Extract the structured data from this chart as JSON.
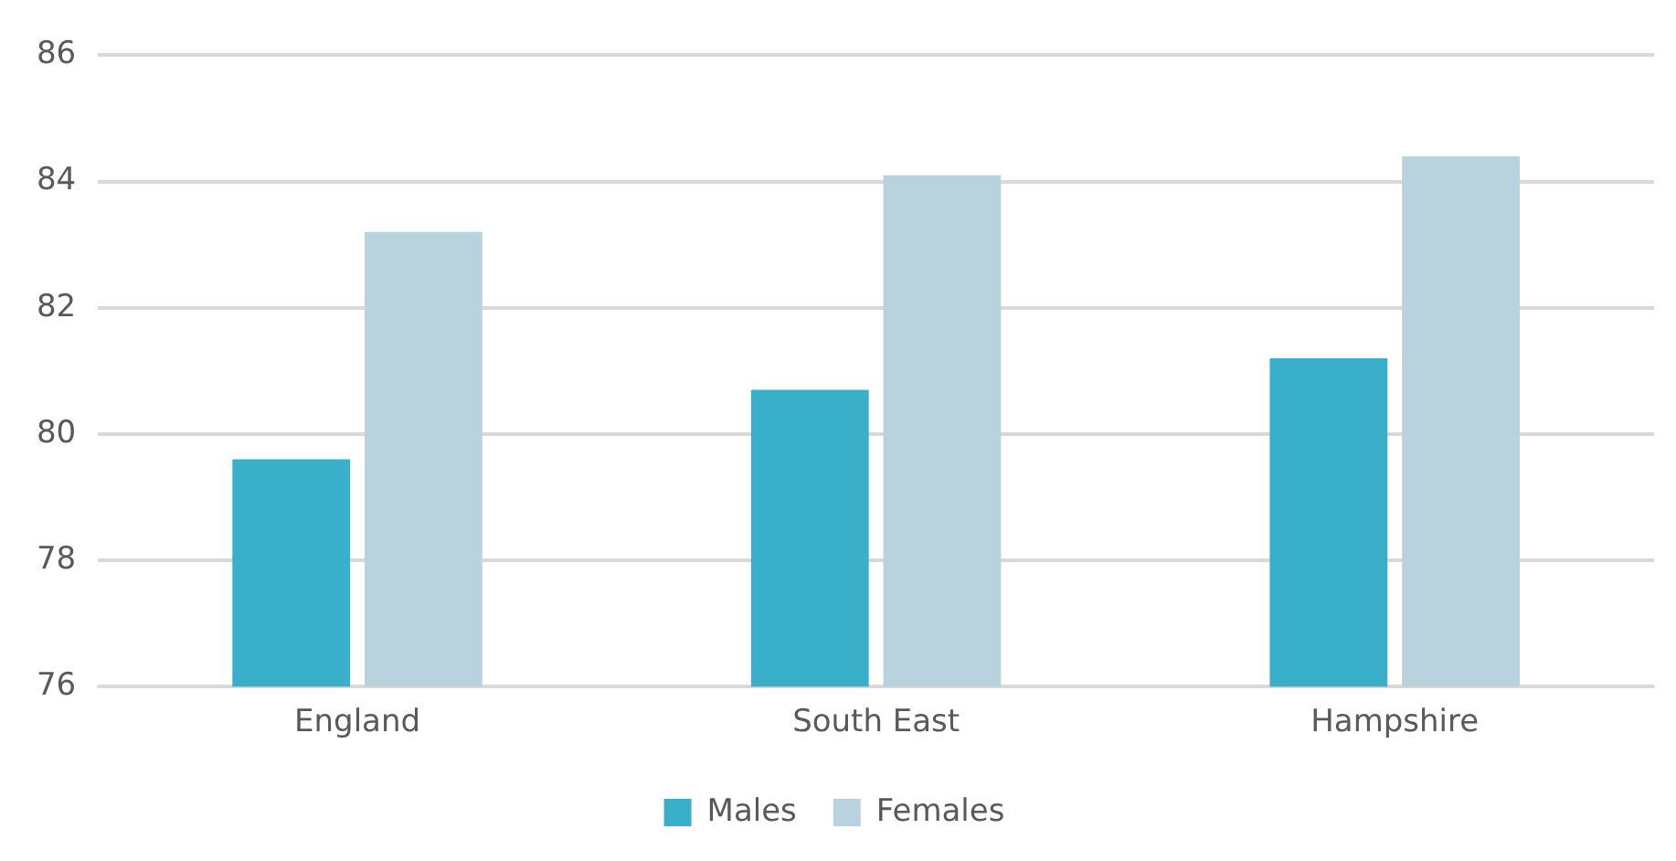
{
  "chart_data": {
    "type": "bar",
    "categories": [
      "England",
      "South East",
      "Hampshire"
    ],
    "series": [
      {
        "name": "Males",
        "color": "#3aafc9",
        "values": [
          79.6,
          80.7,
          81.2
        ]
      },
      {
        "name": "Females",
        "color": "#b9d3de",
        "values": [
          83.2,
          84.1,
          84.4
        ]
      }
    ],
    "ylim": [
      76,
      86
    ],
    "yticks": [
      76,
      78,
      80,
      82,
      84,
      86
    ],
    "grid": "y",
    "legend": "bottom"
  }
}
